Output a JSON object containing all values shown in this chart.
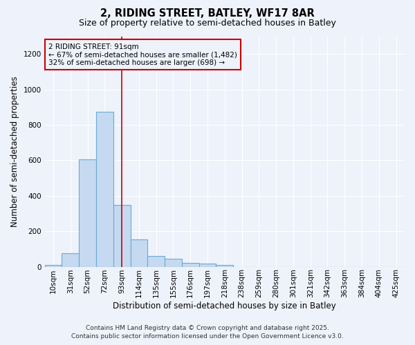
{
  "title": "2, RIDING STREET, BATLEY, WF17 8AR",
  "subtitle": "Size of property relative to semi-detached houses in Batley",
  "xlabel": "Distribution of semi-detached houses by size in Batley",
  "ylabel": "Number of semi-detached properties",
  "bar_labels": [
    "10sqm",
    "31sqm",
    "52sqm",
    "72sqm",
    "93sqm",
    "114sqm",
    "135sqm",
    "155sqm",
    "176sqm",
    "197sqm",
    "218sqm",
    "238sqm",
    "259sqm",
    "280sqm",
    "301sqm",
    "321sqm",
    "342sqm",
    "363sqm",
    "384sqm",
    "404sqm",
    "425sqm"
  ],
  "bar_values": [
    8,
    75,
    605,
    875,
    348,
    155,
    62,
    43,
    22,
    18,
    8,
    0,
    0,
    0,
    0,
    0,
    0,
    0,
    0,
    0,
    0
  ],
  "bar_color": "#c5d9f0",
  "bar_edge_color": "#6aaad4",
  "marker_bin_index": 4,
  "marker_color": "#cc0000",
  "annotation_title": "2 RIDING STREET: 91sqm",
  "annotation_line1": "← 67% of semi-detached houses are smaller (1,482)",
  "annotation_line2": "32% of semi-detached houses are larger (698) →",
  "annotation_box_color": "#cc0000",
  "ylim": [
    0,
    1300
  ],
  "yticks": [
    0,
    200,
    400,
    600,
    800,
    1000,
    1200
  ],
  "footer_line1": "Contains HM Land Registry data © Crown copyright and database right 2025.",
  "footer_line2": "Contains public sector information licensed under the Open Government Licence v3.0.",
  "bg_color": "#eef2fb",
  "grid_color": "#ffffff",
  "title_fontsize": 10.5,
  "subtitle_fontsize": 9,
  "axis_label_fontsize": 8.5,
  "tick_fontsize": 7.5,
  "annotation_fontsize": 7.5,
  "footer_fontsize": 6.5
}
